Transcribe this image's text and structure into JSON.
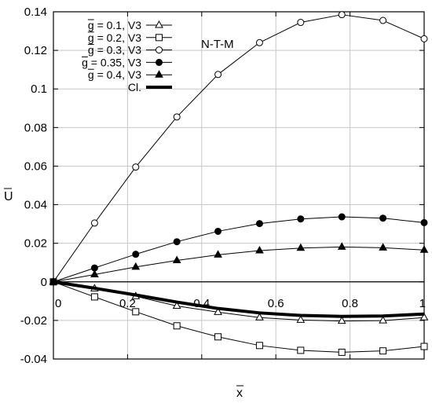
{
  "chart_data": {
    "type": "line",
    "title": "",
    "annotation": "N-T-M",
    "xlabel": "x",
    "ylabel": "U",
    "xlim": [
      0,
      1
    ],
    "ylim": [
      -0.04,
      0.14
    ],
    "grid": true,
    "legend_position": "top-left",
    "x_ticks": [
      0,
      0.2,
      0.4,
      0.6,
      0.8,
      1
    ],
    "x_tick_labels": [
      "0",
      "0.2",
      "0.4",
      "0.6",
      "0.8",
      "1"
    ],
    "y_ticks": [
      -0.04,
      -0.02,
      0,
      0.02,
      0.04,
      0.06,
      0.08,
      0.1,
      0.12,
      0.14
    ],
    "y_tick_labels": [
      "-0.04",
      "-0.02",
      "0",
      "0.02",
      "0.04",
      "0.06",
      "0.08",
      "0.1",
      "0.12",
      "0.14"
    ],
    "x": [
      0,
      0.111,
      0.222,
      0.333,
      0.444,
      0.556,
      0.667,
      0.778,
      0.889,
      1.0
    ],
    "series": [
      {
        "name": "g = 0.1, V3",
        "marker": "triangle-open",
        "values": [
          0,
          -0.0035,
          -0.0075,
          -0.0125,
          -0.0157,
          -0.0185,
          -0.0198,
          -0.0203,
          -0.0201,
          -0.0185
        ]
      },
      {
        "name": "g = 0.2, V3",
        "marker": "square-open",
        "values": [
          0,
          -0.0078,
          -0.0155,
          -0.0228,
          -0.0285,
          -0.033,
          -0.0355,
          -0.0365,
          -0.0358,
          -0.0335
        ]
      },
      {
        "name": "g = 0.3, V3",
        "marker": "circle-open",
        "values": [
          0,
          0.0305,
          0.0595,
          0.0855,
          0.1075,
          0.124,
          0.1345,
          0.1385,
          0.1355,
          0.126
        ]
      },
      {
        "name": "g = 0.35, V3",
        "marker": "circle-filled",
        "values": [
          0,
          0.0072,
          0.0143,
          0.0208,
          0.0262,
          0.0302,
          0.0326,
          0.0337,
          0.033,
          0.0307
        ]
      },
      {
        "name": "g = 0.4, V3",
        "marker": "triangle-filled",
        "values": [
          0,
          0.0038,
          0.0077,
          0.0111,
          0.014,
          0.0162,
          0.0175,
          0.0181,
          0.0177,
          0.0165
        ]
      },
      {
        "name": "Cl.",
        "marker": "none",
        "line": "thick",
        "values": [
          0,
          -0.0033,
          -0.0068,
          -0.0105,
          -0.0138,
          -0.0161,
          -0.0174,
          -0.0179,
          -0.0177,
          -0.0167
        ]
      }
    ]
  }
}
